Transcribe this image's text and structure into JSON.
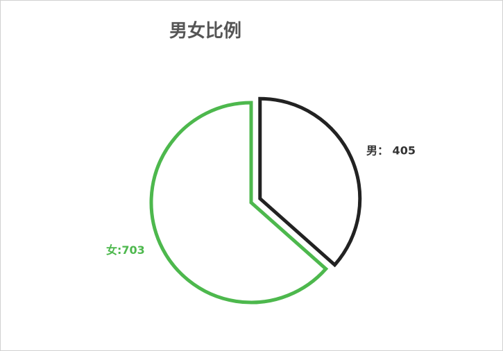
{
  "chart_data": {
    "type": "pie",
    "title": "男女比例",
    "categories": [
      "男",
      "女"
    ],
    "values": [
      405,
      703
    ],
    "labels": [
      "男： 405",
      "女:703"
    ],
    "colors": [
      "#222222",
      "#4db84d"
    ],
    "style": "outline",
    "exploded": [
      "男"
    ],
    "legend": "none"
  }
}
